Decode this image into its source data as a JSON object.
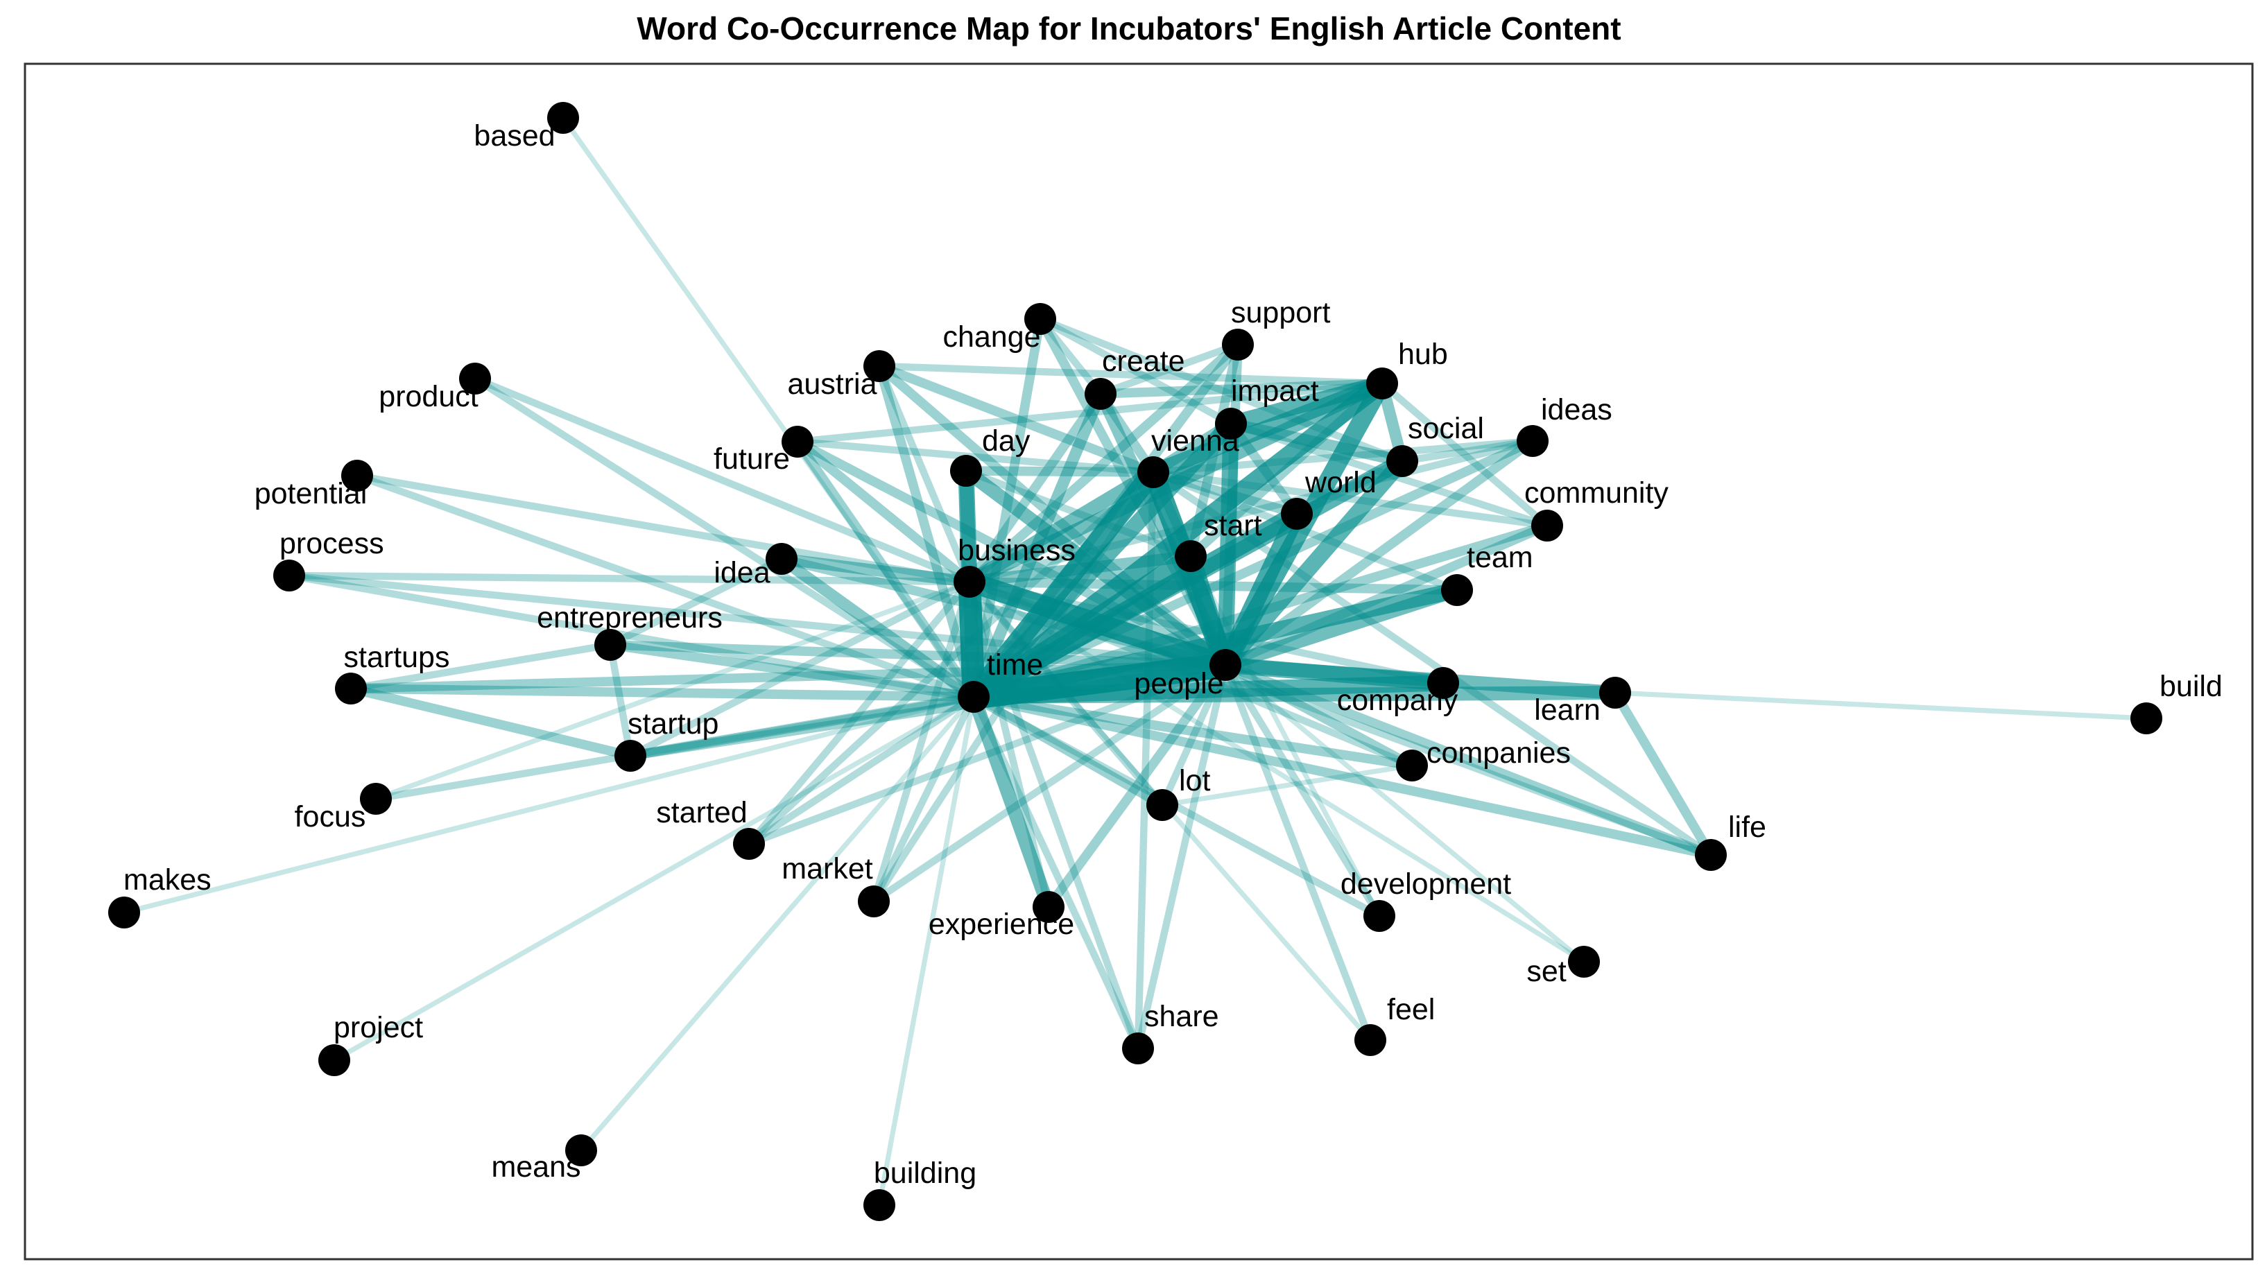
{
  "title": "Word Co-Occurrence Map for Incubators' English Article Content",
  "colors": {
    "edge": "#008B8B",
    "node": "#000000",
    "frame": "#333333",
    "background": "#ffffff"
  },
  "nodes": [
    {
      "id": "based",
      "label": "based"
    },
    {
      "id": "change",
      "label": "change"
    },
    {
      "id": "support",
      "label": "support"
    },
    {
      "id": "create",
      "label": "create"
    },
    {
      "id": "hub",
      "label": "hub"
    },
    {
      "id": "austria",
      "label": "austria"
    },
    {
      "id": "impact",
      "label": "impact"
    },
    {
      "id": "ideas",
      "label": "ideas"
    },
    {
      "id": "product",
      "label": "product"
    },
    {
      "id": "social",
      "label": "social"
    },
    {
      "id": "future",
      "label": "future"
    },
    {
      "id": "day",
      "label": "day"
    },
    {
      "id": "vienna",
      "label": "vienna"
    },
    {
      "id": "world",
      "label": "world"
    },
    {
      "id": "potential",
      "label": "potential"
    },
    {
      "id": "community",
      "label": "community"
    },
    {
      "id": "process",
      "label": "process"
    },
    {
      "id": "start",
      "label": "start"
    },
    {
      "id": "idea",
      "label": "idea"
    },
    {
      "id": "business",
      "label": "business"
    },
    {
      "id": "team",
      "label": "team"
    },
    {
      "id": "entrepreneurs",
      "label": "entrepreneurs"
    },
    {
      "id": "startups",
      "label": "startups"
    },
    {
      "id": "time",
      "label": "time"
    },
    {
      "id": "people",
      "label": "people"
    },
    {
      "id": "company",
      "label": "company"
    },
    {
      "id": "learn",
      "label": "learn"
    },
    {
      "id": "build",
      "label": "build"
    },
    {
      "id": "startup",
      "label": "startup"
    },
    {
      "id": "companies",
      "label": "companies"
    },
    {
      "id": "focus",
      "label": "focus"
    },
    {
      "id": "lot",
      "label": "lot"
    },
    {
      "id": "started",
      "label": "started"
    },
    {
      "id": "life",
      "label": "life"
    },
    {
      "id": "makes",
      "label": "makes"
    },
    {
      "id": "market",
      "label": "market"
    },
    {
      "id": "development",
      "label": "development"
    },
    {
      "id": "experience",
      "label": "experience"
    },
    {
      "id": "set",
      "label": "set"
    },
    {
      "id": "project",
      "label": "project"
    },
    {
      "id": "share",
      "label": "share"
    },
    {
      "id": "feel",
      "label": "feel"
    },
    {
      "id": "means",
      "label": "means"
    },
    {
      "id": "building",
      "label": "building"
    }
  ],
  "edges": [
    {
      "source": "time",
      "target": "people",
      "weight": 10
    },
    {
      "source": "time",
      "target": "business",
      "weight": 9
    },
    {
      "source": "people",
      "target": "business",
      "weight": 8
    },
    {
      "source": "time",
      "target": "vienna",
      "weight": 8
    },
    {
      "source": "people",
      "target": "vienna",
      "weight": 8
    },
    {
      "source": "time",
      "target": "hub",
      "weight": 7
    },
    {
      "source": "people",
      "target": "hub",
      "weight": 7
    },
    {
      "source": "time",
      "target": "start",
      "weight": 7
    },
    {
      "source": "people",
      "target": "start",
      "weight": 7
    },
    {
      "source": "time",
      "target": "world",
      "weight": 7
    },
    {
      "source": "people",
      "target": "world",
      "weight": 7
    },
    {
      "source": "time",
      "target": "impact",
      "weight": 6
    },
    {
      "source": "people",
      "target": "impact",
      "weight": 6
    },
    {
      "source": "time",
      "target": "social",
      "weight": 6
    },
    {
      "source": "people",
      "target": "social",
      "weight": 6
    },
    {
      "source": "time",
      "target": "team",
      "weight": 6
    },
    {
      "source": "people",
      "target": "team",
      "weight": 5
    },
    {
      "source": "time",
      "target": "day",
      "weight": 5
    },
    {
      "source": "people",
      "target": "day",
      "weight": 5
    },
    {
      "source": "time",
      "target": "company",
      "weight": 6
    },
    {
      "source": "people",
      "target": "company",
      "weight": 6
    },
    {
      "source": "time",
      "target": "learn",
      "weight": 5
    },
    {
      "source": "people",
      "target": "learn",
      "weight": 5
    },
    {
      "source": "vienna",
      "target": "hub",
      "weight": 6
    },
    {
      "source": "impact",
      "target": "hub",
      "weight": 6
    },
    {
      "source": "social",
      "target": "hub",
      "weight": 4
    },
    {
      "source": "social",
      "target": "impact",
      "weight": 4
    },
    {
      "source": "vienna",
      "target": "impact",
      "weight": 4
    },
    {
      "source": "business",
      "target": "vienna",
      "weight": 5
    },
    {
      "source": "business",
      "target": "hub",
      "weight": 5
    },
    {
      "source": "business",
      "target": "day",
      "weight": 6
    },
    {
      "source": "business",
      "target": "idea",
      "weight": 4
    },
    {
      "source": "business",
      "target": "start",
      "weight": 4
    },
    {
      "source": "business",
      "target": "create",
      "weight": 3
    },
    {
      "source": "time",
      "target": "idea",
      "weight": 4
    },
    {
      "source": "people",
      "target": "idea",
      "weight": 3
    },
    {
      "source": "time",
      "target": "create",
      "weight": 4
    },
    {
      "source": "people",
      "target": "create",
      "weight": 4
    },
    {
      "source": "time",
      "target": "support",
      "weight": 3
    },
    {
      "source": "people",
      "target": "support",
      "weight": 3
    },
    {
      "source": "time",
      "target": "change",
      "weight": 3
    },
    {
      "source": "people",
      "target": "change",
      "weight": 3
    },
    {
      "source": "time",
      "target": "austria",
      "weight": 3
    },
    {
      "source": "people",
      "target": "austria",
      "weight": 3
    },
    {
      "source": "time",
      "target": "future",
      "weight": 3
    },
    {
      "source": "people",
      "target": "future",
      "weight": 3
    },
    {
      "source": "time",
      "target": "ideas",
      "weight": 3
    },
    {
      "source": "people",
      "target": "ideas",
      "weight": 3
    },
    {
      "source": "time",
      "target": "community",
      "weight": 3
    },
    {
      "source": "people",
      "target": "community",
      "weight": 3
    },
    {
      "source": "time",
      "target": "entrepreneurs",
      "weight": 3
    },
    {
      "source": "people",
      "target": "entrepreneurs",
      "weight": 3
    },
    {
      "source": "time",
      "target": "startups",
      "weight": 3
    },
    {
      "source": "people",
      "target": "startups",
      "weight": 3
    },
    {
      "source": "time",
      "target": "startup",
      "weight": 3
    },
    {
      "source": "people",
      "target": "startup",
      "weight": 3
    },
    {
      "source": "time",
      "target": "experience",
      "weight": 5
    },
    {
      "source": "people",
      "target": "experience",
      "weight": 3
    },
    {
      "source": "time",
      "target": "companies",
      "weight": 3
    },
    {
      "source": "people",
      "target": "companies",
      "weight": 3
    },
    {
      "source": "time",
      "target": "lot",
      "weight": 3
    },
    {
      "source": "people",
      "target": "lot",
      "weight": 2
    },
    {
      "source": "time",
      "target": "life",
      "weight": 3
    },
    {
      "source": "people",
      "target": "life",
      "weight": 3
    },
    {
      "source": "time",
      "target": "started",
      "weight": 2
    },
    {
      "source": "people",
      "target": "started",
      "weight": 2
    },
    {
      "source": "time",
      "target": "market",
      "weight": 2
    },
    {
      "source": "people",
      "target": "market",
      "weight": 2
    },
    {
      "source": "time",
      "target": "process",
      "weight": 2
    },
    {
      "source": "people",
      "target": "process",
      "weight": 2
    },
    {
      "source": "time",
      "target": "potential",
      "weight": 2
    },
    {
      "source": "time",
      "target": "product",
      "weight": 2
    },
    {
      "source": "people",
      "target": "share",
      "weight": 2
    },
    {
      "source": "time",
      "target": "share",
      "weight": 2
    },
    {
      "source": "people",
      "target": "development",
      "weight": 2
    },
    {
      "source": "people",
      "target": "feel",
      "weight": 2
    },
    {
      "source": "time",
      "target": "focus",
      "weight": 2
    },
    {
      "source": "people",
      "target": "set",
      "weight": 1
    },
    {
      "source": "learn",
      "target": "life",
      "weight": 3
    },
    {
      "source": "learn",
      "target": "build",
      "weight": 1
    },
    {
      "source": "time",
      "target": "based",
      "weight": 1
    },
    {
      "source": "time",
      "target": "makes",
      "weight": 1
    },
    {
      "source": "time",
      "target": "project",
      "weight": 1
    },
    {
      "source": "time",
      "target": "means",
      "weight": 1
    },
    {
      "source": "time",
      "target": "building",
      "weight": 1
    },
    {
      "source": "time",
      "target": "development",
      "weight": 2
    },
    {
      "source": "idea",
      "target": "entrepreneurs",
      "weight": 2
    },
    {
      "source": "entrepreneurs",
      "target": "startup",
      "weight": 2
    },
    {
      "source": "startups",
      "target": "startup",
      "weight": 3
    },
    {
      "source": "startups",
      "target": "entrepreneurs",
      "weight": 2
    },
    {
      "source": "potential",
      "target": "business",
      "weight": 2
    },
    {
      "source": "product",
      "target": "business",
      "weight": 2
    },
    {
      "source": "process",
      "target": "business",
      "weight": 2
    },
    {
      "source": "startup",
      "target": "business",
      "weight": 2
    },
    {
      "source": "focus",
      "target": "business",
      "weight": 1
    },
    {
      "source": "austria",
      "target": "vienna",
      "weight": 3
    },
    {
      "source": "austria",
      "target": "hub",
      "weight": 2
    },
    {
      "source": "austria",
      "target": "business",
      "weight": 2
    },
    {
      "source": "change",
      "target": "impact",
      "weight": 2
    },
    {
      "source": "change",
      "target": "social",
      "weight": 2
    },
    {
      "source": "change",
      "target": "create",
      "weight": 2
    },
    {
      "source": "create",
      "target": "hub",
      "weight": 3
    },
    {
      "source": "create",
      "target": "vienna",
      "weight": 3
    },
    {
      "source": "support",
      "target": "start",
      "weight": 3
    },
    {
      "source": "support",
      "target": "business",
      "weight": 3
    },
    {
      "source": "support",
      "target": "create",
      "weight": 2
    },
    {
      "source": "future",
      "target": "business",
      "weight": 3
    },
    {
      "source": "future",
      "target": "vienna",
      "weight": 2
    },
    {
      "source": "future",
      "target": "hub",
      "weight": 2
    },
    {
      "source": "world",
      "target": "vienna",
      "weight": 3
    },
    {
      "source": "world",
      "target": "social",
      "weight": 3
    },
    {
      "source": "world",
      "target": "impact",
      "weight": 3
    },
    {
      "source": "ideas",
      "target": "vienna",
      "weight": 2
    },
    {
      "source": "ideas",
      "target": "social",
      "weight": 2
    },
    {
      "source": "ideas",
      "target": "business",
      "weight": 2
    },
    {
      "source": "community",
      "target": "vienna",
      "weight": 2
    },
    {
      "source": "community",
      "target": "impact",
      "weight": 2
    },
    {
      "source": "community",
      "target": "hub",
      "weight": 2
    },
    {
      "source": "team",
      "target": "business",
      "weight": 3
    },
    {
      "source": "team",
      "target": "vienna",
      "weight": 2
    },
    {
      "source": "company",
      "target": "business",
      "weight": 2
    },
    {
      "source": "companies",
      "target": "business",
      "weight": 2
    },
    {
      "source": "companies",
      "target": "lot",
      "weight": 1
    },
    {
      "source": "day",
      "target": "start",
      "weight": 2
    },
    {
      "source": "day",
      "target": "vienna",
      "weight": 3
    },
    {
      "source": "lot",
      "target": "business",
      "weight": 2
    },
    {
      "source": "experience",
      "target": "business",
      "weight": 2
    },
    {
      "source": "market",
      "target": "business",
      "weight": 2
    },
    {
      "source": "market",
      "target": "vienna",
      "weight": 2
    },
    {
      "source": "started",
      "target": "business",
      "weight": 2
    },
    {
      "source": "started",
      "target": "vienna",
      "weight": 2
    },
    {
      "source": "share",
      "target": "vienna",
      "weight": 2
    },
    {
      "source": "share",
      "target": "business",
      "weight": 2
    },
    {
      "source": "feel",
      "target": "business",
      "weight": 1
    },
    {
      "source": "development",
      "target": "start",
      "weight": 1
    },
    {
      "source": "set",
      "target": "business",
      "weight": 1
    },
    {
      "source": "life",
      "target": "business",
      "weight": 2
    },
    {
      "source": "life",
      "target": "vienna",
      "weight": 2
    },
    {
      "source": "start",
      "target": "vienna",
      "weight": 3
    },
    {
      "source": "start",
      "target": "hub",
      "weight": 3
    }
  ]
}
